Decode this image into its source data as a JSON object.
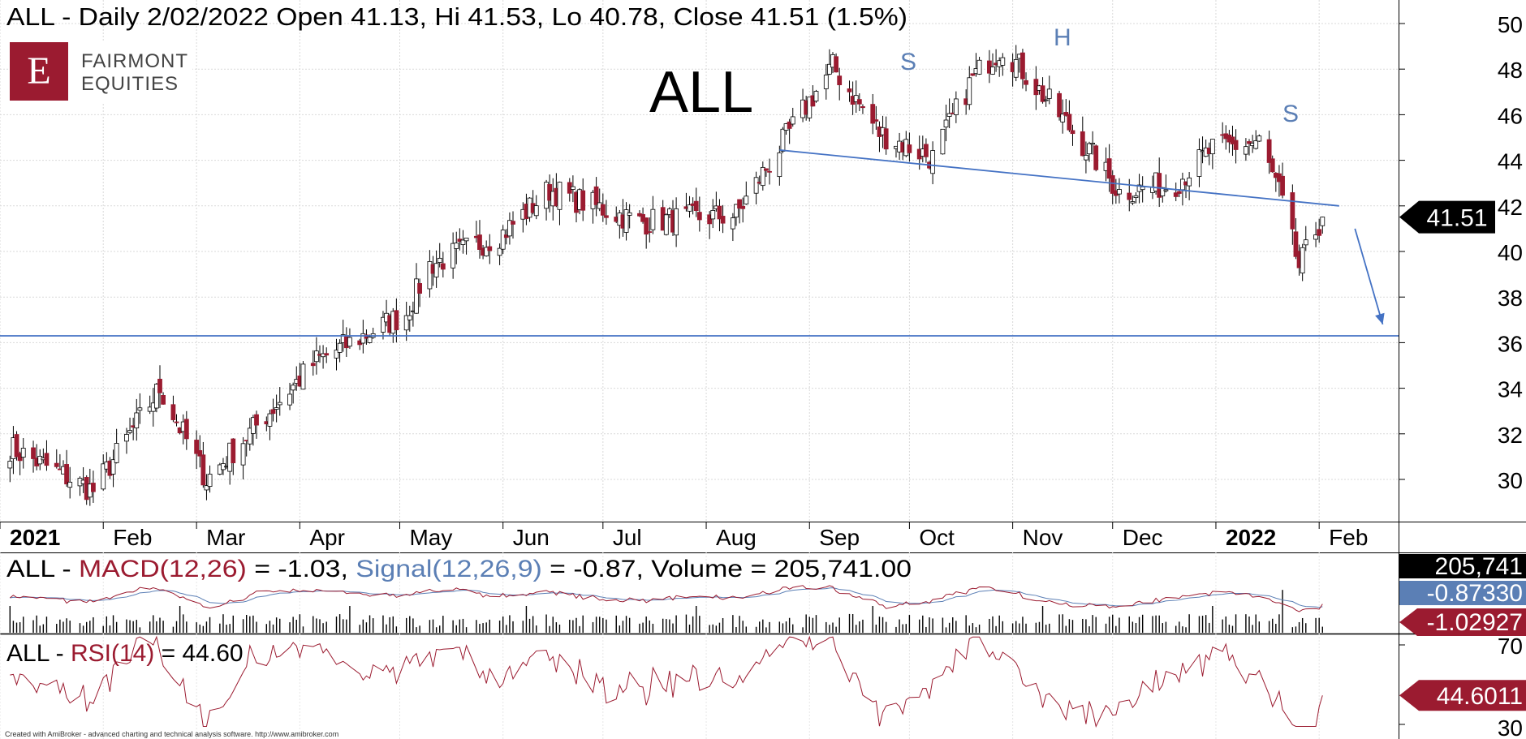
{
  "header": {
    "title": "ALL - Daily 2/02/2022 Open 41.13, Hi 41.53, Lo 40.78, Close 41.51 (1.5%)"
  },
  "logo": {
    "letter": "E",
    "line1": "FAIRMONT",
    "line2": "EQUITIES"
  },
  "big_ticker": "ALL",
  "annotations": {
    "left_shoulder": "S",
    "head": "H",
    "right_shoulder": "S"
  },
  "price_badge": "41.51",
  "macd_panel": {
    "prefix": "ALL - ",
    "macd_label": "MACD(12,26) = -1.03,",
    "signal_label": "Signal(12,26,9) = -0.87,",
    "volume_label": "Volume = 205,741.00",
    "badge_volume": "205,741",
    "badge_signal": "-0.87330",
    "badge_macd": "-1.02927"
  },
  "rsi_panel": {
    "prefix": "ALL - ",
    "rsi_label": "RSI(14)",
    "value_label": "= 44.60",
    "badge": "44.6011",
    "ticks": [
      "70",
      "30"
    ]
  },
  "footer": {
    "credit": "Created with AmiBroker - advanced charting and technical analysis software. http://www.amibroker.com"
  },
  "colors": {
    "up": "#ffffff",
    "down": "#9b1b30",
    "outline": "#000000",
    "trendline": "#4472c4",
    "macd": "#9b1b30",
    "signal": "#5b7fb5",
    "rsi": "#9b1b30",
    "badge_dark": "#000000",
    "badge_red": "#9b1b30",
    "badge_blue": "#5b7fb5"
  },
  "chart_data": [
    {
      "type": "candlestick",
      "title": "ALL - Daily 2/02/2022 Open 41.13, Hi 41.53, Lo 40.78, Close 41.51 (1.5%)",
      "x_tick_labels": [
        "2021",
        "Feb",
        "Mar",
        "Apr",
        "May",
        "Jun",
        "Jul",
        "Aug",
        "Sep",
        "Oct",
        "Nov",
        "Dec",
        "2022",
        "Feb"
      ],
      "y_tick_labels": [
        "30",
        "32",
        "34",
        "36",
        "38",
        "40",
        "42",
        "44",
        "46",
        "48",
        "50"
      ],
      "ylim": [
        28.6,
        51
      ],
      "grid": true,
      "last_bar": {
        "date": "2/02/2022",
        "open": 41.13,
        "high": 41.53,
        "low": 40.78,
        "close": 41.51,
        "change_pct": 1.5
      },
      "key_points": [
        {
          "date": "2021-01-04",
          "close": 31.4
        },
        {
          "date": "2021-01-29",
          "close": 29.5
        },
        {
          "date": "2021-02-18",
          "close": 34.0
        },
        {
          "date": "2021-03-04",
          "close": 30.0
        },
        {
          "date": "2021-04-06",
          "close": 35.2
        },
        {
          "date": "2021-05-03",
          "close": 37.3
        },
        {
          "date": "2021-05-10",
          "close": 39.4
        },
        {
          "date": "2021-06-01",
          "close": 40.8
        },
        {
          "date": "2021-06-15",
          "close": 42.7
        },
        {
          "date": "2021-07-12",
          "close": 41.3
        },
        {
          "date": "2021-08-10",
          "close": 41.6
        },
        {
          "date": "2021-09-01",
          "close": 46.6
        },
        {
          "date": "2021-09-08",
          "close": 48.1
        },
        {
          "date": "2021-09-22",
          "close": 45.2
        },
        {
          "date": "2021-10-08",
          "close": 44.1
        },
        {
          "date": "2021-10-20",
          "close": 47.6
        },
        {
          "date": "2021-10-29",
          "close": 49.0
        },
        {
          "date": "2021-11-15",
          "close": 46.0
        },
        {
          "date": "2021-11-26",
          "close": 44.0
        },
        {
          "date": "2021-12-03",
          "close": 42.6
        },
        {
          "date": "2021-12-20",
          "close": 43.0
        },
        {
          "date": "2021-12-31",
          "close": 44.5
        },
        {
          "date": "2022-01-14",
          "close": 44.8
        },
        {
          "date": "2022-01-20",
          "close": 42.6
        },
        {
          "date": "2022-01-26",
          "close": 39.3
        },
        {
          "date": "2022-01-31",
          "close": 40.9
        },
        {
          "date": "2022-02-02",
          "close": 41.51
        }
      ],
      "neckline": {
        "from": {
          "date": "2021-08-23",
          "value": 44.45
        },
        "to": {
          "date": "2022-02-07",
          "value": 42.0
        }
      },
      "support_line": {
        "value": 36.3
      },
      "projection_arrow": {
        "from": {
          "date": "2022-02-02",
          "value": 41.0
        },
        "to": {
          "date": "2022-02-04",
          "value": 36.8
        }
      }
    },
    {
      "type": "line",
      "title": "ALL - MACD(12,26) = -1.03, Signal(12,26,9) = -0.87, Volume = 205,741.00",
      "series": [
        {
          "name": "MACD(12,26)",
          "last": -1.02927
        },
        {
          "name": "Signal(12,26,9)",
          "last": -0.8733
        },
        {
          "name": "Volume",
          "last": 205741
        }
      ]
    },
    {
      "type": "line",
      "title": "ALL - RSI(14) = 44.60",
      "y_tick_labels": [
        "70",
        "30"
      ],
      "series": [
        {
          "name": "RSI(14)",
          "last": 44.6011
        }
      ]
    }
  ]
}
